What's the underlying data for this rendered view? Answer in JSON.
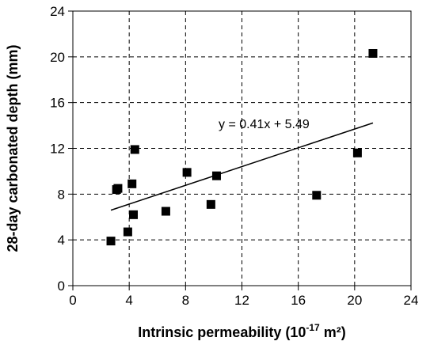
{
  "chart_data": {
    "type": "scatter",
    "title": "",
    "xlabel_main": "Intrinsic permeability (10",
    "xlabel_exp": "-17",
    "xlabel_tail": " m²)",
    "ylabel": "28-day carbonated depth (mm)",
    "xlim": [
      0,
      24
    ],
    "ylim": [
      0,
      24
    ],
    "x_ticks": [
      0,
      4,
      8,
      12,
      16,
      20,
      24
    ],
    "y_ticks": [
      0,
      4,
      8,
      12,
      16,
      20,
      24
    ],
    "x_tick_labels": [
      "0",
      "4",
      "8",
      "12",
      "16",
      "20",
      "24"
    ],
    "y_tick_labels": [
      "0",
      "4",
      "8",
      "12",
      "16",
      "20",
      "24"
    ],
    "grid": true,
    "series": [
      {
        "points": [
          [
            2.7,
            3.9
          ],
          [
            3.1,
            8.4
          ],
          [
            3.2,
            8.5
          ],
          [
            3.9,
            4.7
          ],
          [
            4.2,
            8.9
          ],
          [
            4.3,
            6.2
          ],
          [
            4.4,
            11.9
          ],
          [
            6.6,
            6.5
          ],
          [
            8.1,
            9.9
          ],
          [
            9.8,
            7.1
          ],
          [
            10.2,
            9.6
          ],
          [
            17.3,
            7.9
          ],
          [
            20.2,
            11.6
          ],
          [
            21.3,
            20.3
          ]
        ]
      }
    ],
    "trendline": {
      "slope": 0.41,
      "intercept": 5.49,
      "x_range": [
        2.7,
        21.3
      ],
      "label": "y = 0.41x + 5.49"
    }
  }
}
